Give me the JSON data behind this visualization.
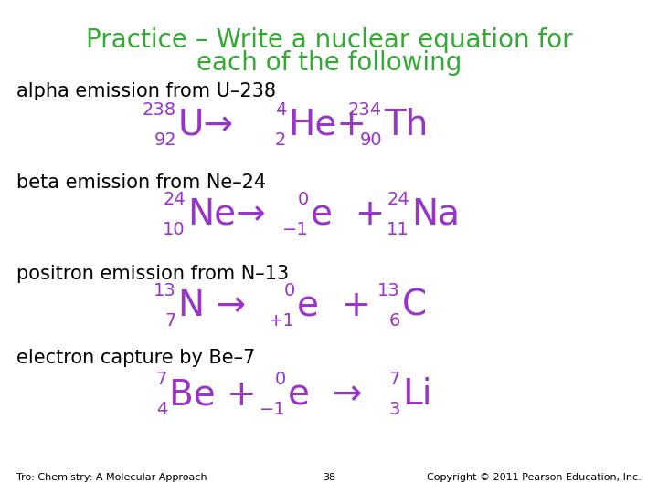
{
  "bg_color": "#ffffff",
  "title_color": "#33aa33",
  "eq_color": "#9933cc",
  "black_color": "#000000",
  "title_line1": "Practice – Write a nuclear equation for",
  "title_line2": "each of the following",
  "title_fontsize": 20,
  "label_fontsize": 15,
  "eq_fontsize_large": 28,
  "eq_fontsize_small": 14,
  "footer_fontsize": 8,
  "labels": [
    "alpha emission from U–238",
    "beta emission from Ne–24",
    "positron emission from N–13",
    "electron capture by Be–7"
  ],
  "footer_left": "Tro: Chemistry: A Molecular Approach",
  "footer_center": "38",
  "footer_right": "Copyright © 2011 Pearson Education, Inc."
}
